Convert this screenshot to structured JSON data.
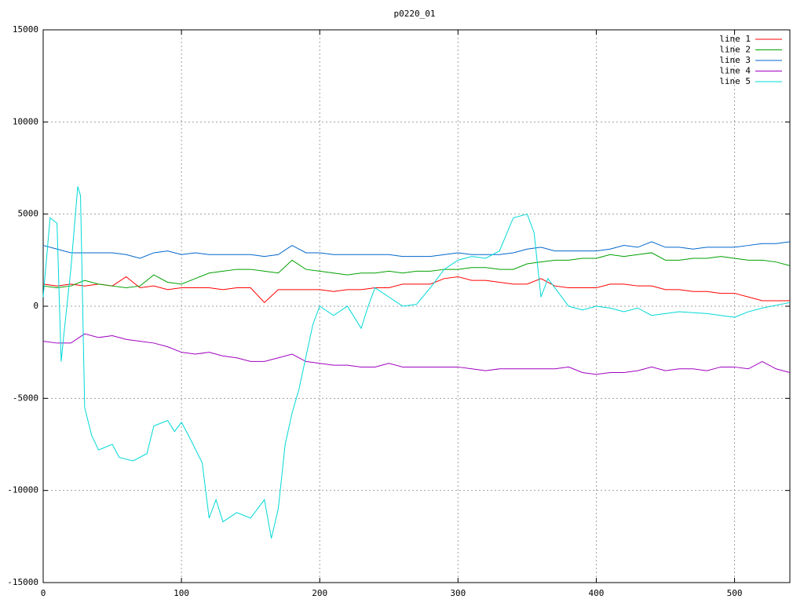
{
  "chart_data": {
    "type": "line",
    "title": "p0220_01",
    "xlim": [
      0,
      540
    ],
    "ylim": [
      -15000,
      15000
    ],
    "xticks": [
      0,
      100,
      200,
      300,
      400,
      500
    ],
    "yticks": [
      -15000,
      -10000,
      -5000,
      0,
      5000,
      10000,
      15000
    ],
    "grid": true,
    "legend": "top-right",
    "series": [
      {
        "name": "line 1",
        "color": "#ff0000",
        "x": [
          0,
          10,
          20,
          30,
          40,
          50,
          60,
          70,
          80,
          90,
          100,
          110,
          120,
          130,
          140,
          150,
          160,
          170,
          180,
          190,
          200,
          210,
          220,
          230,
          240,
          250,
          260,
          270,
          280,
          290,
          300,
          310,
          320,
          330,
          340,
          350,
          360,
          370,
          380,
          390,
          400,
          410,
          420,
          430,
          440,
          450,
          460,
          470,
          480,
          490,
          500,
          510,
          520,
          530,
          540
        ],
        "values": [
          1200,
          1100,
          1200,
          1100,
          1200,
          1100,
          1600,
          1000,
          1100,
          900,
          1000,
          1000,
          1000,
          900,
          1000,
          1000,
          200,
          900,
          900,
          900,
          900,
          800,
          900,
          900,
          1000,
          1000,
          1200,
          1200,
          1200,
          1500,
          1600,
          1400,
          1400,
          1300,
          1200,
          1200,
          1500,
          1100,
          1000,
          1000,
          1000,
          1200,
          1200,
          1100,
          1100,
          900,
          900,
          800,
          800,
          700,
          700,
          500,
          300,
          300,
          300
        ]
      },
      {
        "name": "line 2",
        "color": "#00a000",
        "x": [
          0,
          10,
          20,
          30,
          40,
          50,
          60,
          70,
          80,
          90,
          100,
          110,
          120,
          130,
          140,
          150,
          160,
          170,
          180,
          190,
          200,
          210,
          220,
          230,
          240,
          250,
          260,
          270,
          280,
          290,
          300,
          310,
          320,
          330,
          340,
          350,
          360,
          370,
          380,
          390,
          400,
          410,
          420,
          430,
          440,
          450,
          460,
          470,
          480,
          490,
          500,
          510,
          520,
          530,
          540
        ],
        "values": [
          1100,
          1000,
          1100,
          1400,
          1200,
          1100,
          1000,
          1100,
          1700,
          1300,
          1200,
          1500,
          1800,
          1900,
          2000,
          2000,
          1900,
          1800,
          2500,
          2000,
          1900,
          1800,
          1700,
          1800,
          1800,
          1900,
          1800,
          1900,
          1900,
          2000,
          2000,
          2100,
          2100,
          2000,
          2000,
          2300,
          2400,
          2500,
          2500,
          2600,
          2600,
          2800,
          2700,
          2800,
          2900,
          2500,
          2500,
          2600,
          2600,
          2700,
          2600,
          2500,
          2500,
          2400,
          2200
        ]
      },
      {
        "name": "line 3",
        "color": "#0066cc",
        "x": [
          0,
          10,
          20,
          30,
          40,
          50,
          60,
          70,
          80,
          90,
          100,
          110,
          120,
          130,
          140,
          150,
          160,
          170,
          180,
          190,
          200,
          210,
          220,
          230,
          240,
          250,
          260,
          270,
          280,
          290,
          300,
          310,
          320,
          330,
          340,
          350,
          360,
          370,
          380,
          390,
          400,
          410,
          420,
          430,
          440,
          450,
          460,
          470,
          480,
          490,
          500,
          510,
          520,
          530,
          540
        ],
        "values": [
          3300,
          3100,
          2900,
          2900,
          2900,
          2900,
          2800,
          2600,
          2900,
          3000,
          2800,
          2900,
          2800,
          2800,
          2800,
          2800,
          2700,
          2800,
          3300,
          2900,
          2900,
          2800,
          2800,
          2800,
          2800,
          2800,
          2700,
          2700,
          2700,
          2800,
          2900,
          2800,
          2800,
          2800,
          2900,
          3100,
          3200,
          3000,
          3000,
          3000,
          3000,
          3100,
          3300,
          3200,
          3500,
          3200,
          3200,
          3100,
          3200,
          3200,
          3200,
          3300,
          3400,
          3400,
          3500
        ]
      },
      {
        "name": "line 4",
        "color": "#a000c0",
        "x": [
          0,
          10,
          20,
          30,
          40,
          50,
          60,
          70,
          80,
          90,
          100,
          110,
          120,
          130,
          140,
          150,
          160,
          170,
          180,
          190,
          200,
          210,
          220,
          230,
          240,
          250,
          260,
          270,
          280,
          290,
          300,
          310,
          320,
          330,
          340,
          350,
          360,
          370,
          380,
          390,
          400,
          410,
          420,
          430,
          440,
          450,
          460,
          470,
          480,
          490,
          500,
          510,
          520,
          530,
          540
        ],
        "values": [
          -1900,
          -2000,
          -2000,
          -1500,
          -1700,
          -1600,
          -1800,
          -1900,
          -2000,
          -2200,
          -2500,
          -2600,
          -2500,
          -2700,
          -2800,
          -3000,
          -3000,
          -2800,
          -2600,
          -3000,
          -3100,
          -3200,
          -3200,
          -3300,
          -3300,
          -3100,
          -3300,
          -3300,
          -3300,
          -3300,
          -3300,
          -3400,
          -3500,
          -3400,
          -3400,
          -3400,
          -3400,
          -3400,
          -3300,
          -3600,
          -3700,
          -3600,
          -3600,
          -3500,
          -3300,
          -3500,
          -3400,
          -3400,
          -3500,
          -3300,
          -3300,
          -3400,
          -3000,
          -3400,
          -3600
        ]
      },
      {
        "name": "line 5",
        "color": "#00d8d8",
        "x": [
          0,
          5,
          10,
          13,
          15,
          20,
          25,
          27,
          30,
          35,
          40,
          50,
          55,
          65,
          75,
          80,
          90,
          95,
          100,
          105,
          115,
          120,
          125,
          130,
          140,
          150,
          160,
          165,
          170,
          175,
          180,
          185,
          195,
          200,
          210,
          220,
          230,
          235,
          240,
          250,
          260,
          270,
          280,
          290,
          300,
          310,
          320,
          330,
          340,
          350,
          355,
          360,
          365,
          375,
          380,
          390,
          400,
          410,
          420,
          430,
          440,
          450,
          460,
          480,
          500,
          510,
          520,
          540
        ],
        "values": [
          500,
          4800,
          4500,
          -3000,
          -1500,
          2000,
          6500,
          6000,
          -5500,
          -7000,
          -7800,
          -7500,
          -8200,
          -8400,
          -8000,
          -6500,
          -6200,
          -6800,
          -6300,
          -7000,
          -8500,
          -11500,
          -10500,
          -11700,
          -11200,
          -11500,
          -10500,
          -12600,
          -11000,
          -7500,
          -5800,
          -4500,
          -1000,
          0,
          -500,
          0,
          -1200,
          0,
          1000,
          500,
          0,
          100,
          1000,
          2000,
          2500,
          2700,
          2600,
          3000,
          4800,
          5000,
          4000,
          500,
          1500,
          500,
          0,
          -200,
          0,
          -100,
          -300,
          -100,
          -500,
          -400,
          -300,
          -400,
          -600,
          -300,
          -100,
          200
        ]
      }
    ]
  }
}
